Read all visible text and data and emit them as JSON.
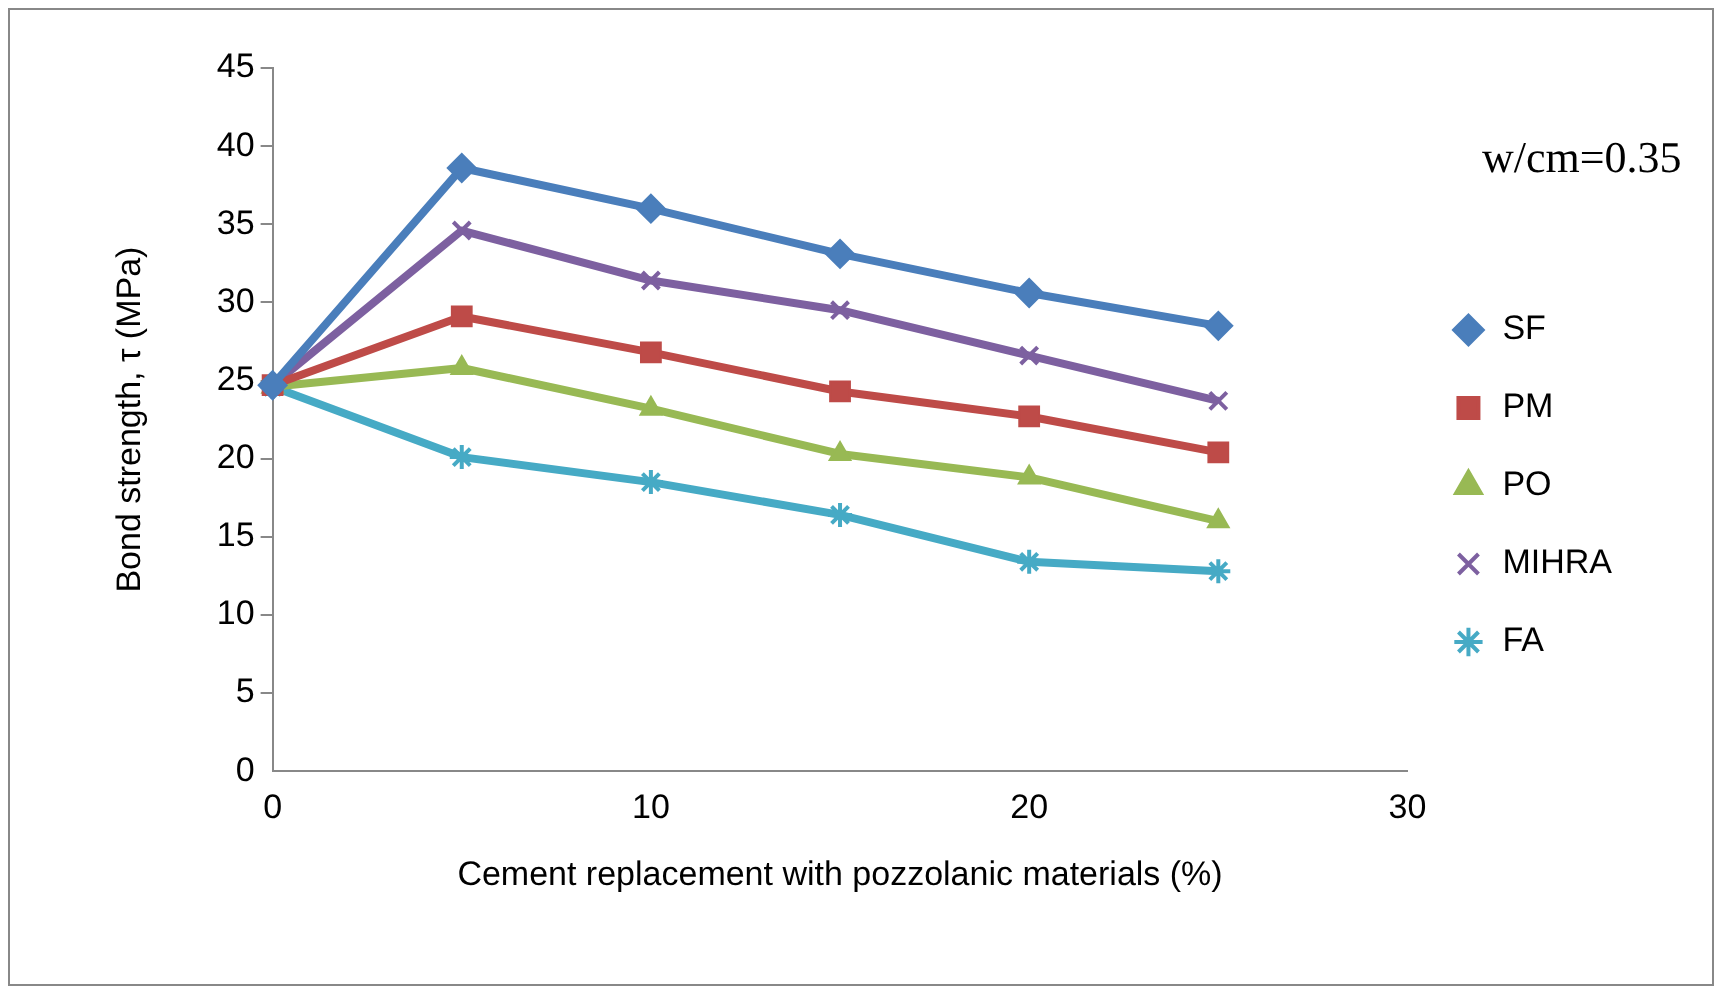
{
  "chart_data": {
    "type": "line",
    "xlabel": "Cement replacement with pozzolanic materials (%)",
    "ylabel": "Bond strength, τ (MPa)",
    "annotations": [
      "w/cm=0.35"
    ],
    "x": [
      0,
      5,
      10,
      15,
      20,
      25
    ],
    "xlim": [
      0,
      30
    ],
    "xticks": [
      0,
      10,
      20,
      30
    ],
    "ylim": [
      0,
      45
    ],
    "yticks": [
      0,
      5,
      10,
      15,
      20,
      25,
      30,
      35,
      40,
      45
    ],
    "grid": false,
    "legend": "right",
    "series": [
      {
        "name": "SF",
        "color": "#4a7ebb",
        "marker": "diamond",
        "values": [
          24.7,
          38.6,
          36.0,
          33.1,
          30.6,
          28.5
        ]
      },
      {
        "name": "PM",
        "color": "#be4b48",
        "marker": "square",
        "values": [
          24.7,
          29.1,
          26.8,
          24.3,
          22.7,
          20.4
        ]
      },
      {
        "name": "PO",
        "color": "#98b954",
        "marker": "triangle",
        "values": [
          24.6,
          25.8,
          23.2,
          20.3,
          18.8,
          16.0
        ]
      },
      {
        "name": "MIHRA",
        "color": "#7d60a0",
        "marker": "cross",
        "values": [
          24.7,
          34.6,
          31.4,
          29.5,
          26.6,
          23.7
        ]
      },
      {
        "name": "FA",
        "color": "#46aac5",
        "marker": "cross",
        "values": [
          24.6,
          20.1,
          18.5,
          16.4,
          13.4,
          12.8
        ]
      }
    ]
  }
}
